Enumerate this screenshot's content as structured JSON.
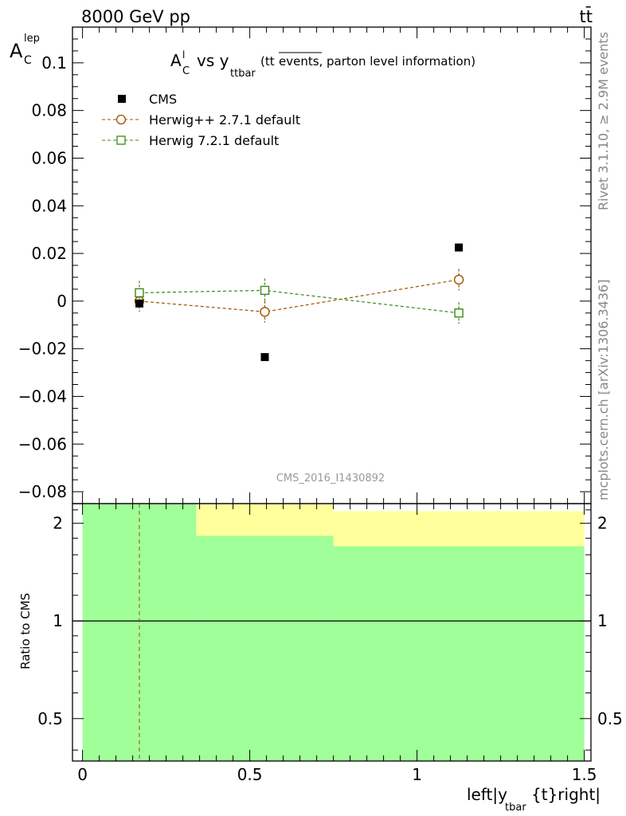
{
  "header": {
    "energy_label": "8000 GeV pp",
    "process_label": "tt̄"
  },
  "side": {
    "rivet_label": "Rivet 3.1.10, ≥ 2.9M events",
    "mcplots_label": "mcplots.cern.ch [arXiv:1306.3436]"
  },
  "colors": {
    "cms": "#000000",
    "herwigpp": "#a05000",
    "herwig7": "#3a8a10",
    "band_green": "#a0ff98",
    "band_yellow": "#ffff9c"
  },
  "chart_data": {
    "type": "scatter",
    "title": {
      "a": "A",
      "sup": "l",
      "sub": "C",
      "vs": "vs y",
      "vs_sub": "ttbar",
      "paren_open": "(tt",
      "overline": "events,",
      "rest": "parton level information)"
    },
    "ylabel": {
      "main": "A",
      "sup": "lep",
      "sub": "C"
    },
    "xlabel": {
      "main": "left|y",
      "sub": "tbar",
      "rest": "{t}right|"
    },
    "analysis_label": "CMS_2016_I1430892",
    "ratio_ylabel": "Ratio to CMS",
    "xlim": [
      -0.03,
      1.52
    ],
    "ylim": [
      -0.085,
      0.115
    ],
    "ratio_ylim": [
      0.37,
      2.3
    ],
    "x_ticks": [
      0,
      0.5,
      1,
      1.5
    ],
    "x_tick_labels": [
      "0",
      "0.5",
      "1",
      "1.5"
    ],
    "y_ticks": [
      -0.08,
      -0.06,
      -0.04,
      -0.02,
      0,
      0.02,
      0.04,
      0.06,
      0.08,
      0.1
    ],
    "y_tick_labels": [
      "−0.08",
      "−0.06",
      "−0.04",
      "−0.02",
      "0",
      "0.02",
      "0.04",
      "0.06",
      "0.08",
      "0.1"
    ],
    "ratio_ticks": [
      0.5,
      1,
      2
    ],
    "ratio_tick_labels": [
      "0.5",
      "1",
      "2"
    ],
    "legend_position": "top-left",
    "series": [
      {
        "name": "CMS",
        "marker": "filled-square",
        "x": [
          0.17,
          0.545,
          1.125
        ],
        "y": [
          -0.001,
          -0.0235,
          0.0225
        ],
        "yerr": [
          0,
          0,
          0
        ]
      },
      {
        "name": "Herwig++ 2.7.1 default",
        "marker": "open-circle",
        "x": [
          0.17,
          0.545,
          1.125
        ],
        "y": [
          0.0,
          -0.0045,
          0.009
        ],
        "yerr": [
          0.0045,
          0.0045,
          0.0045
        ]
      },
      {
        "name": "Herwig 7.2.1 default",
        "marker": "open-square",
        "x": [
          0.17,
          0.545,
          1.125
        ],
        "y": [
          0.0035,
          0.0045,
          -0.005
        ],
        "yerr": [
          0.005,
          0.005,
          0.0045
        ]
      }
    ],
    "ratio_bands": [
      {
        "x0": 0.0,
        "x1": 0.34,
        "green_top": 2.3,
        "yellow_top": 2.3
      },
      {
        "x0": 0.34,
        "x1": 0.75,
        "green_top": 1.83,
        "yellow_top": 2.3
      },
      {
        "x0": 0.75,
        "x1": 1.5,
        "green_top": 1.7,
        "yellow_top": 2.18
      }
    ],
    "ratio_reference": 1,
    "ratio_dashed_x": 0.17
  }
}
